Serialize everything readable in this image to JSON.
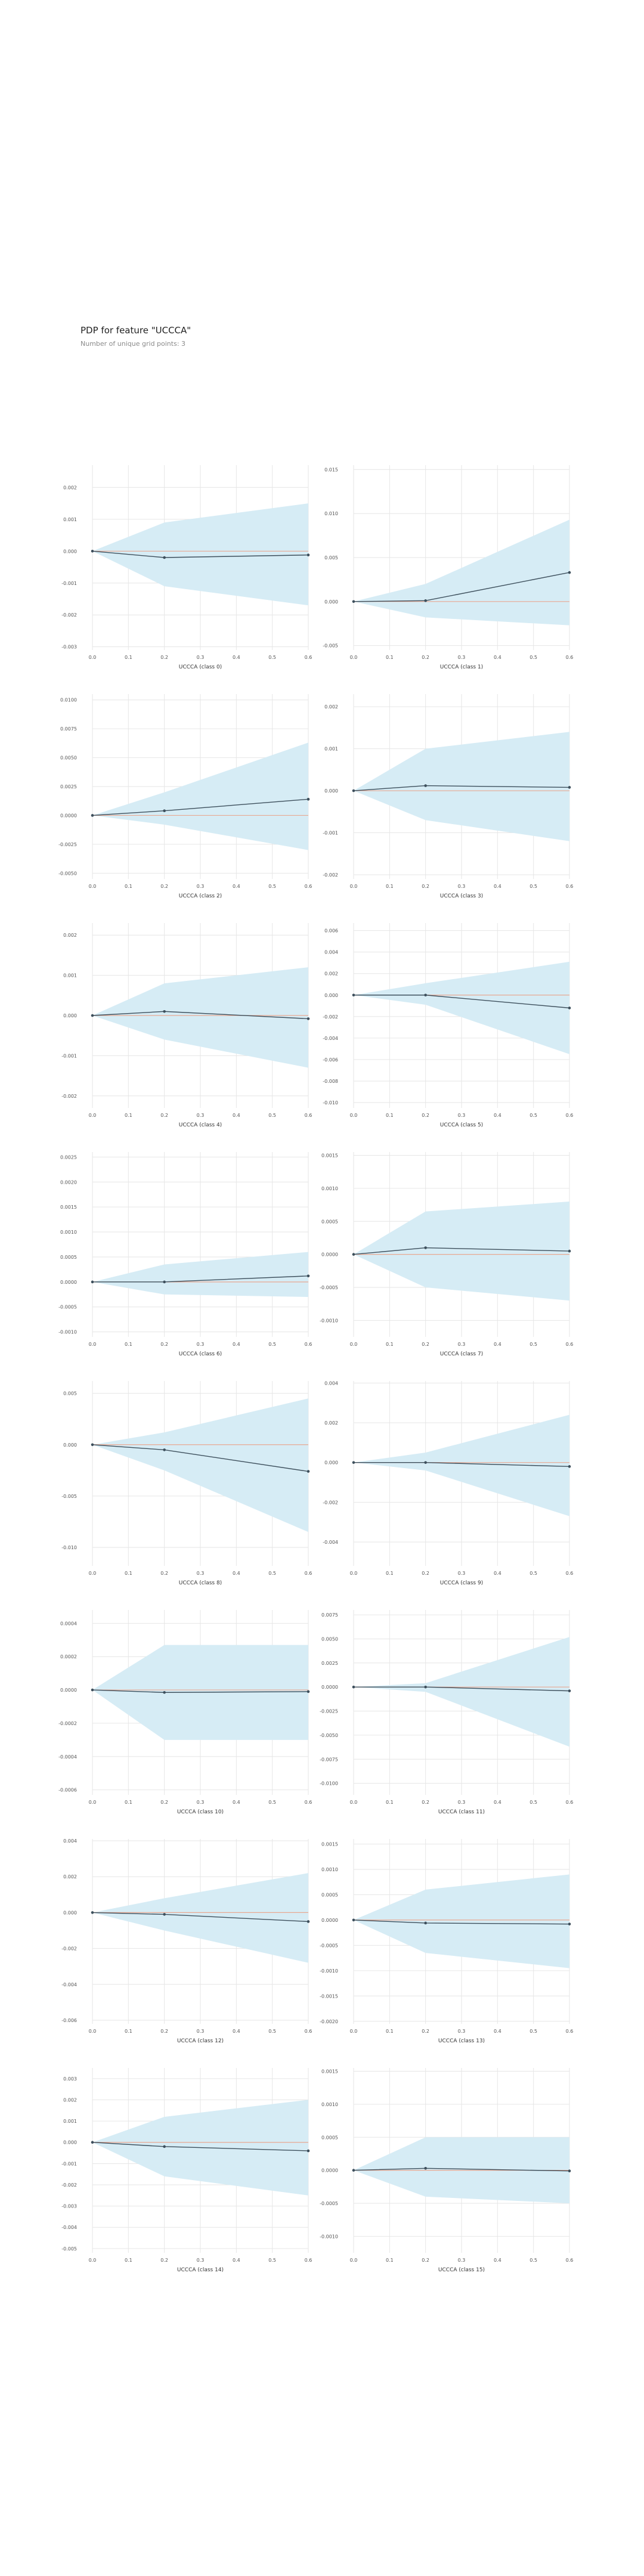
{
  "title": "PDP for feature \"UCCCA\"",
  "subtitle": "Number of unique grid points: 3",
  "colors": {
    "band": "#d6ecf5",
    "line": "#3d4f5c",
    "zero": "#e8a892",
    "grid": "#e6e6e6"
  },
  "chart_data": [
    {
      "type": "line",
      "xlabel": "UCCCA (class 0)",
      "x": [
        0,
        0.2,
        0.6
      ],
      "y": [
        0,
        -0.0002,
        -0.00012
      ],
      "band_upper": [
        0,
        0.0009,
        0.0015
      ],
      "band_lower": [
        0,
        -0.0011,
        -0.0017
      ],
      "ylim": [
        -0.0031,
        0.0027
      ],
      "yticks": [
        0.002,
        0.001,
        0.0,
        -0.001,
        -0.002,
        -0.003
      ],
      "ytick_labels": [
        "0.002",
        "0.001",
        "0.000",
        "-0.001",
        "-0.002",
        "-0.003"
      ],
      "xticks": [
        0,
        0.1,
        0.2,
        0.3,
        0.4,
        0.5,
        0.6
      ],
      "xtick_labels": [
        "0.0",
        "0.1",
        "0.2",
        "0.3",
        "0.4",
        "0.5",
        "0.6"
      ]
    },
    {
      "type": "line",
      "xlabel": "UCCCA (class 1)",
      "x": [
        0,
        0.2,
        0.6
      ],
      "y": [
        0,
        0.0001,
        0.0033
      ],
      "band_upper": [
        0,
        0.002,
        0.0093
      ],
      "band_lower": [
        0,
        -0.0018,
        -0.0027
      ],
      "ylim": [
        -0.0055,
        0.0155
      ],
      "yticks": [
        0.015,
        0.01,
        0.005,
        0.0,
        -0.005
      ],
      "ytick_labels": [
        "0.015",
        "0.010",
        "0.005",
        "0.000",
        "-0.005"
      ],
      "xticks": [
        0,
        0.1,
        0.2,
        0.3,
        0.4,
        0.5,
        0.6
      ],
      "xtick_labels": [
        "0.0",
        "0.1",
        "0.2",
        "0.3",
        "0.4",
        "0.5",
        "0.6"
      ]
    },
    {
      "type": "line",
      "xlabel": "UCCCA (class 2)",
      "x": [
        0,
        0.2,
        0.6
      ],
      "y": [
        0,
        0.0004,
        0.0014
      ],
      "band_upper": [
        0,
        0.002,
        0.0063
      ],
      "band_lower": [
        0,
        -0.0008,
        -0.003
      ],
      "ylim": [
        -0.0055,
        0.0105
      ],
      "yticks": [
        0.01,
        0.0075,
        0.005,
        0.0025,
        0.0,
        -0.0025,
        -0.005
      ],
      "ytick_labels": [
        "0.0100",
        "0.0075",
        "0.0050",
        "0.0025",
        "0.0000",
        "-0.0025",
        "-0.0050"
      ],
      "xticks": [
        0,
        0.1,
        0.2,
        0.3,
        0.4,
        0.5,
        0.6
      ],
      "xtick_labels": [
        "0.0",
        "0.1",
        "0.2",
        "0.3",
        "0.4",
        "0.5",
        "0.6"
      ]
    },
    {
      "type": "line",
      "xlabel": "UCCCA (class 3)",
      "x": [
        0,
        0.2,
        0.6
      ],
      "y": [
        0,
        0.00012,
        8e-05
      ],
      "band_upper": [
        0,
        0.001,
        0.0014
      ],
      "band_lower": [
        0,
        -0.0007,
        -0.0012
      ],
      "ylim": [
        -0.0021,
        0.0023
      ],
      "yticks": [
        0.002,
        0.001,
        0.0,
        -0.001,
        -0.002
      ],
      "ytick_labels": [
        "0.002",
        "0.001",
        "0.000",
        "-0.001",
        "-0.002"
      ],
      "xticks": [
        0,
        0.1,
        0.2,
        0.3,
        0.4,
        0.5,
        0.6
      ],
      "xtick_labels": [
        "0.0",
        "0.1",
        "0.2",
        "0.3",
        "0.4",
        "0.5",
        "0.6"
      ]
    },
    {
      "type": "line",
      "xlabel": "UCCCA (class 4)",
      "x": [
        0,
        0.2,
        0.6
      ],
      "y": [
        0,
        0.0001,
        -8e-05
      ],
      "band_upper": [
        0,
        0.0008,
        0.0012
      ],
      "band_lower": [
        0,
        -0.0006,
        -0.0013
      ],
      "ylim": [
        -0.0023,
        0.0023
      ],
      "yticks": [
        0.002,
        0.001,
        0.0,
        -0.001,
        -0.002
      ],
      "ytick_labels": [
        "0.002",
        "0.001",
        "0.000",
        "-0.001",
        "-0.002"
      ],
      "xticks": [
        0,
        0.1,
        0.2,
        0.3,
        0.4,
        0.5,
        0.6
      ],
      "xtick_labels": [
        "0.0",
        "0.1",
        "0.2",
        "0.3",
        "0.4",
        "0.5",
        "0.6"
      ]
    },
    {
      "type": "line",
      "xlabel": "UCCCA (class 5)",
      "x": [
        0,
        0.2,
        0.6
      ],
      "y": [
        0,
        0,
        -0.0012
      ],
      "band_upper": [
        0,
        0.0011,
        0.0031
      ],
      "band_lower": [
        0,
        -0.0009,
        -0.0055
      ],
      "ylim": [
        -0.0105,
        0.0067
      ],
      "yticks": [
        0.006,
        0.004,
        0.002,
        0.0,
        -0.002,
        -0.004,
        -0.006,
        -0.008,
        -0.01
      ],
      "ytick_labels": [
        "0.006",
        "0.004",
        "0.002",
        "0.000",
        "-0.002",
        "-0.004",
        "-0.006",
        "-0.008",
        "-0.010"
      ],
      "xticks": [
        0,
        0.1,
        0.2,
        0.3,
        0.4,
        0.5,
        0.6
      ],
      "xtick_labels": [
        "0.0",
        "0.1",
        "0.2",
        "0.3",
        "0.4",
        "0.5",
        "0.6"
      ]
    },
    {
      "type": "line",
      "xlabel": "UCCCA (class 6)",
      "x": [
        0,
        0.2,
        0.6
      ],
      "y": [
        0,
        0,
        0.00012
      ],
      "band_upper": [
        0,
        0.00035,
        0.0006
      ],
      "band_lower": [
        0,
        -0.00025,
        -0.0003
      ],
      "ylim": [
        -0.0011,
        0.0026
      ],
      "yticks": [
        0.0025,
        0.002,
        0.0015,
        0.001,
        0.0005,
        0.0,
        -0.0005,
        -0.001
      ],
      "ytick_labels": [
        "0.0025",
        "0.0020",
        "0.0015",
        "0.0010",
        "0.0005",
        "0.0000",
        "-0.0005",
        "-0.0010"
      ],
      "xticks": [
        0,
        0.1,
        0.2,
        0.3,
        0.4,
        0.5,
        0.6
      ],
      "xtick_labels": [
        "0.0",
        "0.1",
        "0.2",
        "0.3",
        "0.4",
        "0.5",
        "0.6"
      ]
    },
    {
      "type": "line",
      "xlabel": "UCCCA (class 7)",
      "x": [
        0,
        0.2,
        0.6
      ],
      "y": [
        0,
        0.0001,
        5e-05
      ],
      "band_upper": [
        0,
        0.00065,
        0.0008
      ],
      "band_lower": [
        0,
        -0.0005,
        -0.0007
      ],
      "ylim": [
        -0.00125,
        0.00155
      ],
      "yticks": [
        0.0015,
        0.001,
        0.0005,
        0.0,
        -0.0005,
        -0.001
      ],
      "ytick_labels": [
        "0.0015",
        "0.0010",
        "0.0005",
        "0.0000",
        "-0.0005",
        "-0.0010"
      ],
      "xticks": [
        0,
        0.1,
        0.2,
        0.3,
        0.4,
        0.5,
        0.6
      ],
      "xtick_labels": [
        "0.0",
        "0.1",
        "0.2",
        "0.3",
        "0.4",
        "0.5",
        "0.6"
      ]
    },
    {
      "type": "line",
      "xlabel": "UCCCA (class 8)",
      "x": [
        0,
        0.2,
        0.6
      ],
      "y": [
        0,
        -0.0005,
        -0.0026
      ],
      "band_upper": [
        0,
        0.0012,
        0.0045
      ],
      "band_lower": [
        0,
        -0.0025,
        -0.0085
      ],
      "ylim": [
        -0.0118,
        0.0062
      ],
      "yticks": [
        0.005,
        0.0,
        -0.005,
        -0.01
      ],
      "ytick_labels": [
        "0.005",
        "0.000",
        "-0.005",
        "-0.010"
      ],
      "xticks": [
        0,
        0.1,
        0.2,
        0.3,
        0.4,
        0.5,
        0.6
      ],
      "xtick_labels": [
        "0.0",
        "0.1",
        "0.2",
        "0.3",
        "0.4",
        "0.5",
        "0.6"
      ]
    },
    {
      "type": "line",
      "xlabel": "UCCCA (class 9)",
      "x": [
        0,
        0.2,
        0.6
      ],
      "y": [
        0,
        0,
        -0.0002
      ],
      "band_upper": [
        0,
        0.0005,
        0.0024
      ],
      "band_lower": [
        0,
        -0.0004,
        -0.0027
      ],
      "ylim": [
        -0.0052,
        0.0041
      ],
      "yticks": [
        0.004,
        0.002,
        0.0,
        -0.002,
        -0.004
      ],
      "ytick_labels": [
        "0.004",
        "0.002",
        "0.000",
        "-0.002",
        "-0.004"
      ],
      "xticks": [
        0,
        0.1,
        0.2,
        0.3,
        0.4,
        0.5,
        0.6
      ],
      "xtick_labels": [
        "0.0",
        "0.1",
        "0.2",
        "0.3",
        "0.4",
        "0.5",
        "0.6"
      ]
    },
    {
      "type": "line",
      "xlabel": "UCCCA (class 10)",
      "x": [
        0,
        0.2,
        0.6
      ],
      "y": [
        0,
        -1.5e-05,
        -1e-05
      ],
      "band_upper": [
        0,
        0.00027,
        0.00027
      ],
      "band_lower": [
        0,
        -0.0003,
        -0.0003
      ],
      "ylim": [
        -0.00063,
        0.00048
      ],
      "yticks": [
        0.0004,
        0.0002,
        0.0,
        -0.0002,
        -0.0004,
        -0.0006
      ],
      "ytick_labels": [
        "0.0004",
        "0.0002",
        "0.0000",
        "-0.0002",
        "-0.0004",
        "-0.0006"
      ],
      "xticks": [
        0,
        0.1,
        0.2,
        0.3,
        0.4,
        0.5,
        0.6
      ],
      "xtick_labels": [
        "0.0",
        "0.1",
        "0.2",
        "0.3",
        "0.4",
        "0.5",
        "0.6"
      ]
    },
    {
      "type": "line",
      "xlabel": "UCCCA (class 11)",
      "x": [
        0,
        0.2,
        0.6
      ],
      "y": [
        0,
        0,
        -0.0004
      ],
      "band_upper": [
        0,
        0.0004,
        0.0052
      ],
      "band_lower": [
        0,
        -0.0005,
        -0.0062
      ],
      "ylim": [
        -0.0112,
        0.008
      ],
      "yticks": [
        0.0075,
        0.005,
        0.0025,
        0.0,
        -0.0025,
        -0.005,
        -0.0075,
        -0.01
      ],
      "ytick_labels": [
        "0.0075",
        "0.0050",
        "0.0025",
        "0.0000",
        "-0.0025",
        "-0.0050",
        "-0.0075",
        "-0.0100"
      ],
      "xticks": [
        0,
        0.1,
        0.2,
        0.3,
        0.4,
        0.5,
        0.6
      ],
      "xtick_labels": [
        "0.0",
        "0.1",
        "0.2",
        "0.3",
        "0.4",
        "0.5",
        "0.6"
      ]
    },
    {
      "type": "line",
      "xlabel": "UCCCA (class 12)",
      "x": [
        0,
        0.2,
        0.6
      ],
      "y": [
        0,
        -0.0001,
        -0.0005
      ],
      "band_upper": [
        0,
        0.0008,
        0.0022
      ],
      "band_lower": [
        0,
        -0.001,
        -0.0028
      ],
      "ylim": [
        -0.0062,
        0.0041
      ],
      "yticks": [
        0.004,
        0.002,
        0.0,
        -0.002,
        -0.004,
        -0.006
      ],
      "ytick_labels": [
        "0.004",
        "0.002",
        "0.000",
        "-0.002",
        "-0.004",
        "-0.006"
      ],
      "xticks": [
        0,
        0.1,
        0.2,
        0.3,
        0.4,
        0.5,
        0.6
      ],
      "xtick_labels": [
        "0.0",
        "0.1",
        "0.2",
        "0.3",
        "0.4",
        "0.5",
        "0.6"
      ]
    },
    {
      "type": "line",
      "xlabel": "UCCCA (class 13)",
      "x": [
        0,
        0.2,
        0.6
      ],
      "y": [
        0,
        -6e-05,
        -8e-05
      ],
      "band_upper": [
        0,
        0.0006,
        0.0009
      ],
      "band_lower": [
        0,
        -0.00065,
        -0.00095
      ],
      "ylim": [
        -0.00205,
        0.0016
      ],
      "yticks": [
        0.0015,
        0.001,
        0.0005,
        0.0,
        -0.0005,
        -0.001,
        -0.0015,
        -0.002
      ],
      "ytick_labels": [
        "0.0015",
        "0.0010",
        "0.0005",
        "0.0000",
        "-0.0005",
        "-0.0010",
        "-0.0015",
        "-0.0020"
      ],
      "xticks": [
        0,
        0.1,
        0.2,
        0.3,
        0.4,
        0.5,
        0.6
      ],
      "xtick_labels": [
        "0.0",
        "0.1",
        "0.2",
        "0.3",
        "0.4",
        "0.5",
        "0.6"
      ]
    },
    {
      "type": "line",
      "xlabel": "UCCCA (class 14)",
      "x": [
        0,
        0.2,
        0.6
      ],
      "y": [
        0,
        -0.0002,
        -0.0004
      ],
      "band_upper": [
        0,
        0.0012,
        0.002
      ],
      "band_lower": [
        0,
        -0.0016,
        -0.0025
      ],
      "ylim": [
        -0.0052,
        0.0035
      ],
      "yticks": [
        0.003,
        0.002,
        0.001,
        0.0,
        -0.001,
        -0.002,
        -0.003,
        -0.004,
        -0.005
      ],
      "ytick_labels": [
        "0.003",
        "0.002",
        "0.001",
        "0.000",
        "-0.001",
        "-0.002",
        "-0.003",
        "-0.004",
        "-0.005"
      ],
      "xticks": [
        0,
        0.1,
        0.2,
        0.3,
        0.4,
        0.5,
        0.6
      ],
      "xtick_labels": [
        "0.0",
        "0.1",
        "0.2",
        "0.3",
        "0.4",
        "0.5",
        "0.6"
      ]
    },
    {
      "type": "line",
      "xlabel": "UCCCA (class 15)",
      "x": [
        0,
        0.2,
        0.6
      ],
      "y": [
        0,
        3e-05,
        -1e-05
      ],
      "band_upper": [
        0,
        0.0005,
        0.0005
      ],
      "band_lower": [
        0,
        -0.0004,
        -0.0005
      ],
      "ylim": [
        -0.00125,
        0.00155
      ],
      "yticks": [
        0.0015,
        0.001,
        0.0005,
        0.0,
        -0.0005,
        -0.001
      ],
      "ytick_labels": [
        "0.0015",
        "0.0010",
        "0.0005",
        "0.0000",
        "-0.0005",
        "-0.0010"
      ],
      "xticks": [
        0,
        0.1,
        0.2,
        0.3,
        0.4,
        0.5,
        0.6
      ],
      "xtick_labels": [
        "0.0",
        "0.1",
        "0.2",
        "0.3",
        "0.4",
        "0.5",
        "0.6"
      ]
    }
  ]
}
